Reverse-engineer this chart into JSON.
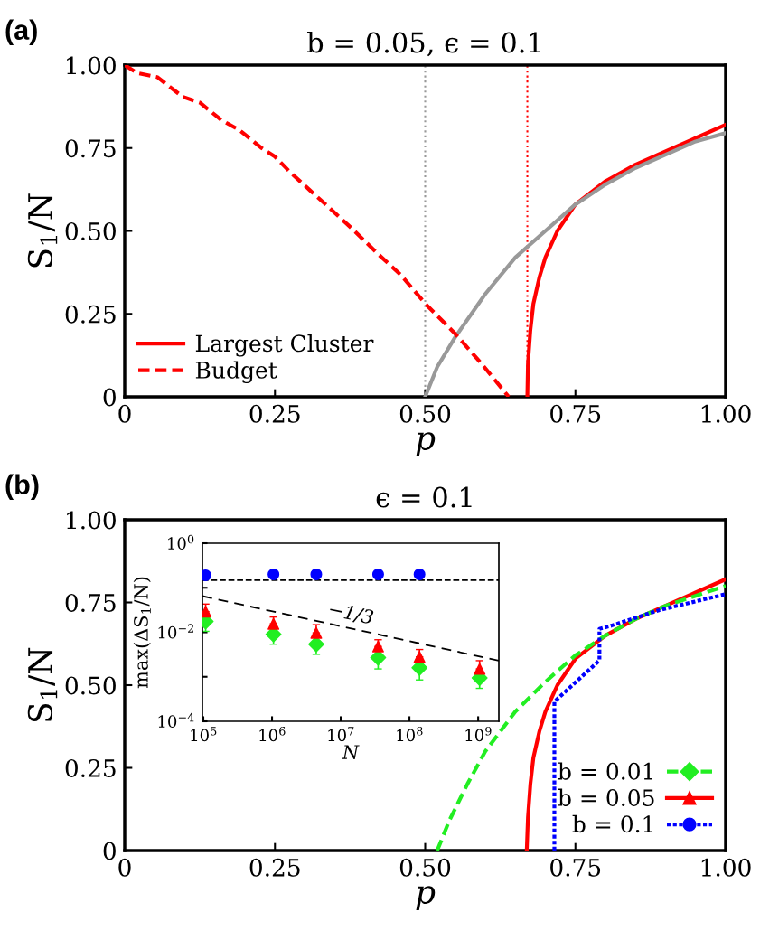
{
  "chart_data": [
    {
      "type": "line",
      "title": "b = 0.05, ϵ = 0.1",
      "xlabel": "p",
      "ylabel": "S$_{1}$/N",
      "annotations": [
        "(a)"
      ],
      "xlim": [
        0,
        1
      ],
      "ylim": [
        0,
        1
      ],
      "xticks": [
        0,
        0.25,
        {
          "value": 0.5,
          "label": "0.50"
        },
        0.75,
        {
          "value": 1,
          "label": "1.00"
        }
      ],
      "yticks": [
        0,
        0.25,
        {
          "value": 0.5,
          "label": "0.50"
        },
        0.75,
        {
          "value": 1,
          "label": "1.00"
        }
      ],
      "legend": "bottom left",
      "grid": false,
      "ref_lines": [
        {
          "axis": "x",
          "value": 0.5,
          "color": "#999999",
          "line_style": "dotted"
        },
        {
          "axis": "x",
          "value": 0.67,
          "color": "#ff0000",
          "line_style": "dotted"
        }
      ],
      "series": [
        {
          "name": "Largest Cluster",
          "color": "#ff0000",
          "line_style": "solid",
          "x": [
            0.67,
            0.671,
            0.675,
            0.68,
            0.69,
            0.7,
            0.72,
            0.75,
            0.8,
            0.85,
            0.9,
            0.95,
            1.0
          ],
          "values": [
            0,
            0.1,
            0.2,
            0.28,
            0.36,
            0.42,
            0.5,
            0.58,
            0.65,
            0.7,
            0.74,
            0.78,
            0.82
          ]
        },
        {
          "name": "Budget",
          "color": "#ff0000",
          "line_style": "dashed",
          "x": [
            0,
            0.021,
            0.054,
            0.096,
            0.125,
            0.161,
            0.191,
            0.227,
            0.25,
            0.276,
            0.308,
            0.341,
            0.38,
            0.42,
            0.459,
            0.501,
            0.55,
            0.596,
            0.639
          ],
          "values": [
            1.0,
            0.976,
            0.964,
            0.905,
            0.887,
            0.834,
            0.804,
            0.751,
            0.724,
            0.676,
            0.623,
            0.569,
            0.504,
            0.433,
            0.368,
            0.279,
            0.19,
            0.095,
            0
          ]
        },
        {
          "color": "#999999",
          "line_style": "solid",
          "x": [
            0.5,
            0.52,
            0.55,
            0.6,
            0.65,
            0.7,
            0.75,
            0.8,
            0.85,
            0.9,
            0.95,
            1.0
          ],
          "values": [
            0,
            0.09,
            0.18,
            0.31,
            0.42,
            0.5,
            0.58,
            0.64,
            0.69,
            0.73,
            0.77,
            0.795
          ]
        }
      ]
    },
    {
      "type": "line",
      "title": "ϵ = 0.1",
      "xlabel": "p",
      "ylabel": "S$_{1}$/N",
      "annotations": [
        "(b)"
      ],
      "xlim": [
        0,
        1
      ],
      "ylim": [
        0,
        1
      ],
      "xticks": [
        0,
        0.25,
        {
          "value": 0.5,
          "label": "0.50"
        },
        0.75,
        {
          "value": 1,
          "label": "1.00"
        }
      ],
      "yticks": [
        0,
        0.25,
        {
          "value": 0.5,
          "label": "0.50"
        },
        0.75,
        {
          "value": 1,
          "label": "1.00"
        }
      ],
      "legend": "bottom right",
      "grid": false,
      "series": [
        {
          "name": "b = 0.01",
          "color": "#22ee22",
          "line_style": "dashed",
          "x": [
            0.52,
            0.54,
            0.57,
            0.6,
            0.65,
            0.7,
            0.75,
            0.8,
            0.85,
            0.9,
            0.95,
            1.0
          ],
          "values": [
            0,
            0.09,
            0.2,
            0.3,
            0.42,
            0.51,
            0.59,
            0.65,
            0.7,
            0.74,
            0.77,
            0.8
          ]
        },
        {
          "name": "b = 0.05",
          "color": "#ff0000",
          "line_style": "solid",
          "x": [
            0.669,
            0.671,
            0.675,
            0.68,
            0.69,
            0.7,
            0.72,
            0.75,
            0.8,
            0.85,
            0.9,
            0.95,
            1.0
          ],
          "values": [
            0,
            0.1,
            0.2,
            0.28,
            0.36,
            0.42,
            0.5,
            0.58,
            0.65,
            0.7,
            0.74,
            0.78,
            0.82
          ]
        },
        {
          "name": "b = 0.1",
          "color": "#0000ff",
          "line_style": "dotted",
          "x": [
            0.715,
            0.715,
            0.79,
            0.79,
            0.81,
            0.89,
            1.0
          ],
          "values": [
            0,
            0.45,
            0.575,
            0.67,
            0.68,
            0.727,
            0.775
          ]
        }
      ]
    },
    {
      "type": "scatter",
      "xlabel": "N",
      "ylabel": "max(ΔS$_{1}$/N)",
      "log": "xy",
      "xlim": [
        97000,
        2000000000
      ],
      "ylim": [
        0.0001,
        1
      ],
      "xticks": [
        {
          "value": 100000,
          "label": "10$^{5}$"
        },
        {
          "value": 1000000,
          "label": "10$^{6}$"
        },
        {
          "value": 10000000,
          "label": "10$^{7}$"
        },
        {
          "value": 100000000,
          "label": "10$^{8}$"
        },
        {
          "value": 1000000000,
          "label": "10$^{9}$"
        }
      ],
      "yticks": [
        {
          "value": 0.0001,
          "label": "10$^{−4}$"
        },
        {
          "value": 0.001,
          "label": null
        },
        {
          "value": 0.01,
          "label": "10$^{−2}$"
        },
        {
          "value": 0.1,
          "label": null
        },
        {
          "value": 1,
          "label": "10$^{0}$"
        }
      ],
      "annotations": [
        "−1/3"
      ],
      "ref_lines": [
        {
          "axis": "y",
          "value": 0.148,
          "color": "#000000",
          "line_style": "dashed"
        }
      ],
      "series": [
        {
          "color": "#22ee22",
          "marker": "diamond",
          "x": [
            108000,
            1050000,
            4400000,
            35000000,
            140000000,
            1050000000
          ],
          "values": [
            0.0175,
            0.009,
            0.0054,
            0.0027,
            0.0016,
            0.00094
          ],
          "errors": [
            [
              0.0105,
              0.0175
            ],
            [
              0.0054,
              0.009
            ],
            [
              0.0032,
              0.0054
            ],
            [
              0.0015,
              0.0027
            ],
            [
              0.00085,
              0.0016
            ],
            [
              0.00055,
              0.00094
            ]
          ]
        },
        {
          "color": "#ff0000",
          "marker": "triangle",
          "x": [
            108000,
            1050000,
            4400000,
            35000000,
            140000000,
            1050000000
          ],
          "values": [
            0.029,
            0.0155,
            0.0097,
            0.0048,
            0.0028,
            0.0015
          ],
          "errors": [
            [
              0.029,
              0.043
            ],
            [
              0.0155,
              0.022
            ],
            [
              0.0097,
              0.0148
            ],
            [
              0.0048,
              0.0068
            ],
            [
              0.0028,
              0.0041
            ],
            [
              0.0015,
              0.0023
            ]
          ]
        },
        {
          "color": "#0000ff",
          "marker": "circle",
          "x": [
            108000,
            1050000,
            4400000,
            35000000,
            140000000
          ],
          "values": [
            0.19,
            0.2,
            0.2,
            0.2,
            0.2
          ]
        },
        {
          "type": "line",
          "color": "#000000",
          "line_style": "dashed",
          "x": [
            97000,
            2000000000
          ],
          "values": [
            0.065,
            0.0023
          ]
        }
      ]
    }
  ]
}
